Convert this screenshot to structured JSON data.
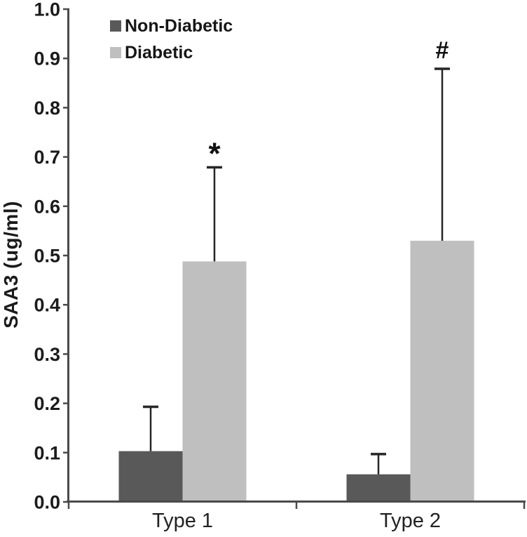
{
  "chart_data": {
    "type": "bar",
    "title": "",
    "ylabel": "SAA3 (ug/ml)",
    "xlabel": "",
    "categories": [
      "Type 1",
      "Type 2"
    ],
    "series": [
      {
        "name": "Non-Diabetic",
        "color": "#595959",
        "values": [
          0.103,
          0.056
        ],
        "error_tops": [
          0.193,
          0.097
        ]
      },
      {
        "name": "Diabetic",
        "color": "#bfbfbf",
        "values": [
          0.488,
          0.53
        ],
        "error_tops": [
          0.679,
          0.879
        ]
      }
    ],
    "annotations": [
      {
        "text": "*",
        "category_index": 0,
        "series_index": 1
      },
      {
        "text": "#",
        "category_index": 1,
        "series_index": 1
      }
    ],
    "ylim": [
      0.0,
      1.0
    ],
    "ytick_step": 0.1,
    "ytick_labels": [
      "0.0",
      "0.1",
      "0.2",
      "0.3",
      "0.4",
      "0.5",
      "0.6",
      "0.7",
      "0.8",
      "0.9",
      "1.0"
    ],
    "legend_position": "top-left",
    "grid": false,
    "error_bars": "upper-only"
  }
}
